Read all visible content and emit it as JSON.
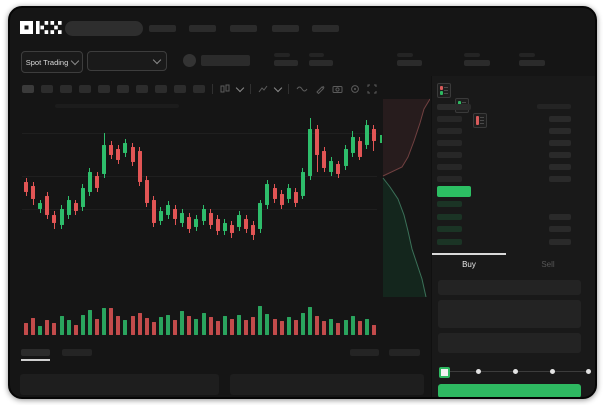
{
  "brand": {
    "logo_text": "OKX"
  },
  "subheader": {
    "market_selector_label": "Spot Trading"
  },
  "order_panel": {
    "buy_tab": "Buy",
    "sell_tab": "Sell"
  },
  "icons": {
    "toolbar": [
      "candle-type-icon",
      "chevron-down-icon",
      "indicator-icon",
      "chevron-down-icon",
      "line-wave-icon",
      "draw-pencil-icon",
      "camera-icon",
      "settings-ring-icon",
      "fullscreen-icon"
    ],
    "order_book_toggles": [
      "book-combined-icon",
      "book-bids-icon",
      "book-asks-icon"
    ]
  },
  "colors": {
    "accent_green": "#2eb961",
    "candle_up": "#2ebd6b",
    "candle_down": "#e25555",
    "last_price_bg": "#2cbf63",
    "bid_row_tint": "#1b3425"
  },
  "order_book": {
    "asks_row_count": 6,
    "bids_row_count": 4
  },
  "chart_data": {
    "type": "candlestick",
    "title": "",
    "xlabel": "",
    "ylabel": "",
    "axis_labels_visible": false,
    "units": "percent of pane height from top (no numeric axis shown in UI)",
    "gridlines_y_pct": [
      16,
      38,
      55
    ],
    "candles": [
      [
        "d",
        39,
        41,
        46,
        48
      ],
      [
        "d",
        41,
        43,
        50,
        53
      ],
      [
        "u",
        50,
        52,
        55,
        57
      ],
      [
        "d",
        46,
        48,
        58,
        60
      ],
      [
        "d",
        56,
        58,
        62,
        65
      ],
      [
        "u",
        53,
        55,
        63,
        65
      ],
      [
        "u",
        48,
        50,
        58,
        60
      ],
      [
        "d",
        50,
        52,
        56,
        58
      ],
      [
        "u",
        42,
        44,
        54,
        56
      ],
      [
        "u",
        34,
        36,
        46,
        48
      ],
      [
        "d",
        36,
        38,
        44,
        46
      ],
      [
        "u",
        16,
        22,
        37,
        39
      ],
      [
        "d",
        20,
        22,
        27,
        29
      ],
      [
        "d",
        22,
        24,
        30,
        32
      ],
      [
        "u",
        19,
        21,
        26,
        28
      ],
      [
        "d",
        21,
        23,
        31,
        33
      ],
      [
        "d",
        23,
        25,
        41,
        43
      ],
      [
        "d",
        38,
        40,
        52,
        54
      ],
      [
        "d",
        48,
        50,
        62,
        64
      ],
      [
        "u",
        54,
        56,
        61,
        63
      ],
      [
        "u",
        51,
        53,
        58,
        60
      ],
      [
        "d",
        53,
        55,
        60,
        63
      ],
      [
        "u",
        55,
        57,
        62,
        64
      ],
      [
        "d",
        57,
        59,
        65,
        67
      ],
      [
        "u",
        58,
        60,
        64,
        66
      ],
      [
        "u",
        53,
        55,
        61,
        63
      ],
      [
        "d",
        55,
        57,
        63,
        65
      ],
      [
        "d",
        58,
        60,
        66,
        68
      ],
      [
        "u",
        60,
        62,
        66,
        68
      ],
      [
        "d",
        61,
        63,
        67,
        70
      ],
      [
        "u",
        56,
        58,
        64,
        66
      ],
      [
        "d",
        58,
        60,
        65,
        67
      ],
      [
        "d",
        61,
        63,
        68,
        71
      ],
      [
        "u",
        50,
        52,
        65,
        67
      ],
      [
        "u",
        40,
        42,
        53,
        55
      ],
      [
        "d",
        42,
        44,
        50,
        52
      ],
      [
        "d",
        45,
        47,
        53,
        55
      ],
      [
        "u",
        42,
        44,
        50,
        52
      ],
      [
        "d",
        44,
        46,
        52,
        54
      ],
      [
        "u",
        34,
        36,
        48,
        50
      ],
      [
        "u",
        8,
        14,
        38,
        40
      ],
      [
        "d",
        12,
        14,
        27,
        36
      ],
      [
        "d",
        23,
        25,
        34,
        36
      ],
      [
        "u",
        28,
        30,
        36,
        38
      ],
      [
        "d",
        30,
        32,
        37,
        39
      ],
      [
        "u",
        22,
        24,
        33,
        35
      ],
      [
        "u",
        15,
        18,
        26,
        28
      ],
      [
        "d",
        18,
        20,
        28,
        30
      ],
      [
        "u",
        9,
        12,
        22,
        24
      ],
      [
        "d",
        12,
        14,
        20,
        25
      ]
    ],
    "volume_pct": [
      40,
      55,
      30,
      50,
      38,
      60,
      48,
      33,
      65,
      80,
      52,
      88,
      88,
      62,
      48,
      60,
      72,
      55,
      42,
      58,
      66,
      48,
      76,
      62,
      52,
      70,
      58,
      44,
      62,
      52,
      66,
      48,
      58,
      95,
      68,
      52,
      44,
      58,
      48,
      72,
      90,
      60,
      44,
      52,
      40,
      48,
      62,
      44,
      52,
      33
    ],
    "depth": {
      "asks": [
        [
          50,
          2
        ],
        [
          44,
          12
        ],
        [
          40,
          26
        ],
        [
          34,
          44
        ],
        [
          28,
          60
        ],
        [
          22,
          70
        ],
        [
          3,
          79
        ]
      ],
      "bids": [
        [
          3,
          81
        ],
        [
          10,
          90
        ],
        [
          18,
          102
        ],
        [
          24,
          118
        ],
        [
          28,
          134
        ],
        [
          32,
          152
        ],
        [
          38,
          170
        ],
        [
          42,
          182
        ],
        [
          46,
          200
        ]
      ]
    }
  }
}
